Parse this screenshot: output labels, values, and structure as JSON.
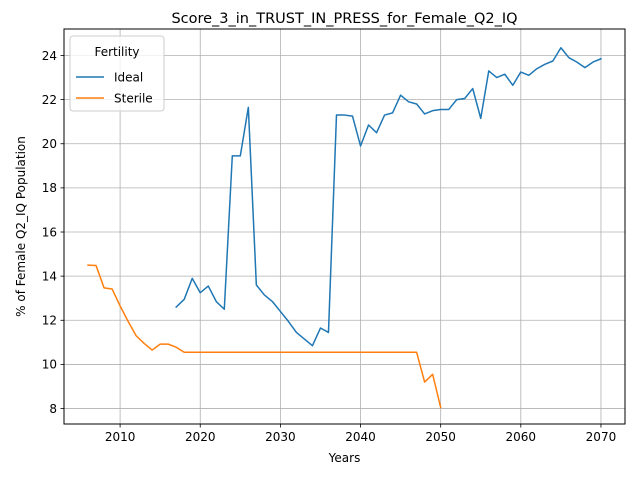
{
  "chart_data": {
    "type": "line",
    "title": "Score_3_in_TRUST_IN_PRESS_for_Female_Q2_IQ",
    "xlabel": "Years",
    "ylabel": "% of Female Q2_IQ Population",
    "xlim": [
      2003,
      2073
    ],
    "ylim": [
      7.3,
      25.2
    ],
    "xticks": [
      2010,
      2020,
      2030,
      2040,
      2050,
      2060,
      2070
    ],
    "yticks": [
      8,
      10,
      12,
      14,
      16,
      18,
      20,
      22,
      24
    ],
    "grid": true,
    "legend": {
      "title": "Fertility",
      "placement": "top-left"
    },
    "series": [
      {
        "name": "Ideal",
        "color": "#1f77b4",
        "x": [
          2017,
          2018,
          2019,
          2020,
          2021,
          2022,
          2023,
          2024,
          2025,
          2026,
          2027,
          2028,
          2029,
          2030,
          2031,
          2032,
          2033,
          2034,
          2035,
          2036,
          2037,
          2038,
          2039,
          2040,
          2041,
          2042,
          2043,
          2044,
          2045,
          2046,
          2047,
          2048,
          2049,
          2050,
          2051,
          2052,
          2053,
          2054,
          2055,
          2056,
          2057,
          2058,
          2059,
          2060,
          2061,
          2062,
          2063,
          2064,
          2065,
          2066,
          2067,
          2068,
          2069,
          2070
        ],
        "values": [
          12.6,
          12.95,
          13.9,
          13.25,
          13.55,
          12.85,
          12.5,
          19.45,
          19.45,
          21.65,
          13.6,
          13.15,
          12.85,
          12.4,
          11.95,
          11.45,
          11.15,
          10.85,
          11.65,
          11.45,
          21.3,
          21.3,
          21.25,
          19.9,
          20.85,
          20.5,
          21.3,
          21.4,
          22.2,
          21.9,
          21.8,
          21.35,
          21.5,
          21.55,
          21.55,
          22.0,
          22.05,
          22.5,
          21.15,
          23.3,
          23.0,
          23.15,
          22.65,
          23.25,
          23.1,
          23.4,
          23.6,
          23.75,
          24.35,
          23.9,
          23.7,
          23.45,
          23.7,
          23.85
        ]
      },
      {
        "name": "Sterile",
        "color": "#ff7f0e",
        "x": [
          2006,
          2007,
          2008,
          2009,
          2010,
          2011,
          2012,
          2013,
          2014,
          2015,
          2016,
          2017,
          2018,
          2019,
          2020,
          2021,
          2022,
          2023,
          2024,
          2025,
          2026,
          2027,
          2028,
          2029,
          2030,
          2031,
          2032,
          2033,
          2034,
          2035,
          2036,
          2037,
          2038,
          2039,
          2040,
          2041,
          2042,
          2043,
          2044,
          2045,
          2046,
          2047,
          2048,
          2049,
          2050
        ],
        "values": [
          14.5,
          14.48,
          13.47,
          13.42,
          12.65,
          11.95,
          11.3,
          10.95,
          10.65,
          10.92,
          10.92,
          10.78,
          10.55,
          10.55,
          10.55,
          10.55,
          10.55,
          10.55,
          10.55,
          10.55,
          10.55,
          10.55,
          10.55,
          10.55,
          10.55,
          10.55,
          10.55,
          10.55,
          10.55,
          10.55,
          10.55,
          10.55,
          10.55,
          10.55,
          10.55,
          10.55,
          10.55,
          10.55,
          10.55,
          10.55,
          10.55,
          10.55,
          9.2,
          9.55,
          8.05
        ]
      }
    ]
  }
}
